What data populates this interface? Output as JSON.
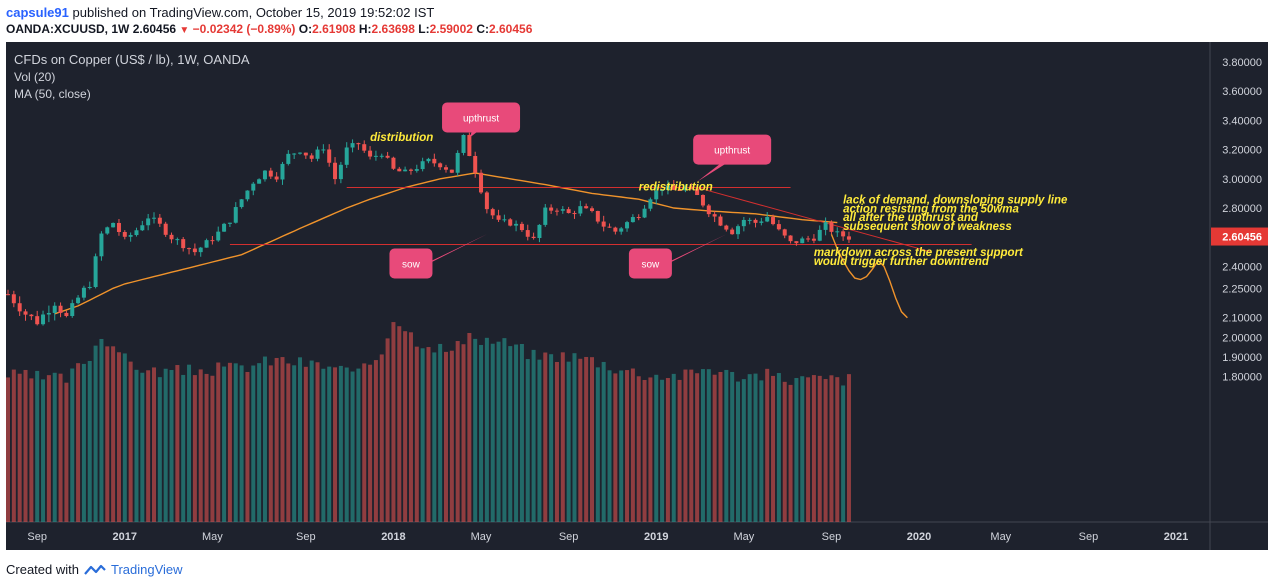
{
  "header": {
    "username": "capsule91",
    "published_text": "published on TradingView.com, October 15, 2019 19:52:02 IST",
    "symbol": "OANDA:XCUUSD, 1W",
    "last": "2.60456",
    "change": "−0.02342 (−0.89%)",
    "o_label": "O:",
    "o": "2.61908",
    "h_label": "H:",
    "h": "2.63698",
    "l_label": "L:",
    "l": "2.59002",
    "c_label": "C:",
    "c": "2.60456"
  },
  "legend": {
    "title": "CFDs on Copper (US$ / lb), 1W, OANDA",
    "vol": "Vol (20)",
    "ma": "MA (50, close)"
  },
  "footer": {
    "created_with": "Created with",
    "brand": "TradingView"
  },
  "colors": {
    "background": "#1e222d",
    "up": "#26a69a",
    "down": "#ef5350",
    "ma": "#f0932b",
    "annotation_bubble": "#e84a7a",
    "annotation_text": "#ffeb3b",
    "lines": "#d32f2f",
    "axis_text": "#d1d4dc",
    "price_label_bg": "#e53935"
  },
  "chart_data": {
    "type": "candlestick",
    "price_axis": {
      "min": 1.7,
      "max": 3.85,
      "ticks": [
        "3.80000",
        "3.60000",
        "3.40000",
        "3.20000",
        "3.00000",
        "2.80000",
        "2.60000",
        "2.40000",
        "2.25000",
        "2.10000",
        "2.00000",
        "1.90000",
        "1.80000"
      ],
      "last_label": "2.60456"
    },
    "time_axis": {
      "ticks": [
        "Sep",
        "2017",
        "May",
        "Sep",
        "2018",
        "May",
        "Sep",
        "2019",
        "May",
        "Sep",
        "2020",
        "May",
        "Sep",
        "2021"
      ]
    },
    "close_anchors": [
      [
        0,
        2.22
      ],
      [
        3,
        2.12
      ],
      [
        5,
        2.08
      ],
      [
        8,
        2.18
      ],
      [
        10,
        2.1
      ],
      [
        12,
        2.2
      ],
      [
        14,
        2.28
      ],
      [
        16,
        2.62
      ],
      [
        18,
        2.7
      ],
      [
        20,
        2.58
      ],
      [
        22,
        2.65
      ],
      [
        24,
        2.74
      ],
      [
        26,
        2.68
      ],
      [
        28,
        2.6
      ],
      [
        30,
        2.55
      ],
      [
        32,
        2.5
      ],
      [
        34,
        2.56
      ],
      [
        36,
        2.63
      ],
      [
        38,
        2.72
      ],
      [
        40,
        2.86
      ],
      [
        42,
        2.98
      ],
      [
        44,
        3.05
      ],
      [
        46,
        3.02
      ],
      [
        48,
        3.16
      ],
      [
        50,
        3.2
      ],
      [
        52,
        3.14
      ],
      [
        54,
        3.22
      ],
      [
        56,
        3.0
      ],
      [
        58,
        3.2
      ],
      [
        60,
        3.24
      ],
      [
        62,
        3.14
      ],
      [
        64,
        3.18
      ],
      [
        66,
        3.06
      ],
      [
        68,
        3.04
      ],
      [
        70,
        3.08
      ],
      [
        72,
        3.12
      ],
      [
        74,
        3.1
      ],
      [
        76,
        3.05
      ],
      [
        78,
        3.28
      ],
      [
        80,
        3.06
      ],
      [
        82,
        2.8
      ],
      [
        84,
        2.7
      ],
      [
        86,
        2.7
      ],
      [
        88,
        2.66
      ],
      [
        90,
        2.58
      ],
      [
        92,
        2.78
      ],
      [
        94,
        2.8
      ],
      [
        96,
        2.76
      ],
      [
        98,
        2.8
      ],
      [
        100,
        2.76
      ],
      [
        102,
        2.68
      ],
      [
        104,
        2.64
      ],
      [
        106,
        2.7
      ],
      [
        108,
        2.76
      ],
      [
        110,
        2.88
      ],
      [
        112,
        2.94
      ],
      [
        114,
        2.92
      ],
      [
        116,
        2.94
      ],
      [
        118,
        2.88
      ],
      [
        120,
        2.78
      ],
      [
        122,
        2.7
      ],
      [
        124,
        2.64
      ],
      [
        126,
        2.72
      ],
      [
        128,
        2.7
      ],
      [
        130,
        2.74
      ],
      [
        132,
        2.64
      ],
      [
        134,
        2.56
      ],
      [
        136,
        2.58
      ],
      [
        138,
        2.6
      ],
      [
        140,
        2.68
      ],
      [
        142,
        2.62
      ],
      [
        144,
        2.6
      ]
    ],
    "volume_anchors": [
      [
        0,
        1.8
      ],
      [
        10,
        1.78
      ],
      [
        14,
        1.9
      ],
      [
        16,
        2.0
      ],
      [
        18,
        1.96
      ],
      [
        20,
        1.88
      ],
      [
        24,
        1.82
      ],
      [
        30,
        1.82
      ],
      [
        40,
        1.84
      ],
      [
        46,
        1.88
      ],
      [
        56,
        1.84
      ],
      [
        60,
        1.8
      ],
      [
        64,
        1.92
      ],
      [
        66,
        2.1
      ],
      [
        70,
        1.98
      ],
      [
        76,
        1.92
      ],
      [
        78,
        1.98
      ],
      [
        82,
        1.98
      ],
      [
        86,
        1.96
      ],
      [
        90,
        1.9
      ],
      [
        96,
        1.9
      ],
      [
        100,
        1.88
      ],
      [
        104,
        1.84
      ],
      [
        110,
        1.8
      ],
      [
        116,
        1.8
      ],
      [
        120,
        1.84
      ],
      [
        124,
        1.8
      ],
      [
        130,
        1.8
      ],
      [
        134,
        1.78
      ],
      [
        140,
        1.78
      ],
      [
        144,
        1.78
      ]
    ],
    "ma_anchors": [
      [
        8,
        2.12
      ],
      [
        12,
        2.16
      ],
      [
        20,
        2.28
      ],
      [
        30,
        2.38
      ],
      [
        40,
        2.48
      ],
      [
        50,
        2.66
      ],
      [
        58,
        2.8
      ],
      [
        62,
        2.86
      ],
      [
        68,
        2.94
      ],
      [
        74,
        3.0
      ],
      [
        80,
        3.04
      ],
      [
        86,
        3.0
      ],
      [
        92,
        2.96
      ],
      [
        100,
        2.9
      ],
      [
        108,
        2.86
      ],
      [
        114,
        2.8
      ],
      [
        120,
        2.78
      ],
      [
        128,
        2.76
      ],
      [
        136,
        2.72
      ],
      [
        142,
        2.7
      ]
    ],
    "forecast": [
      [
        141,
        2.62
      ],
      [
        142,
        2.52
      ],
      [
        143,
        2.44
      ],
      [
        144,
        2.37
      ],
      [
        145,
        2.32
      ],
      [
        146,
        2.31
      ],
      [
        147,
        2.33
      ],
      [
        148,
        2.38
      ],
      [
        149,
        2.44
      ],
      [
        150,
        2.4
      ],
      [
        151,
        2.3
      ],
      [
        152,
        2.2
      ],
      [
        153,
        2.13
      ],
      [
        154,
        2.1
      ]
    ],
    "annotations": [
      {
        "kind": "bubble",
        "text": "upthrust",
        "x": 81,
        "y": 3.42,
        "tip_x": 79,
        "tip_y": 3.28
      },
      {
        "kind": "bubble",
        "text": "upthrust",
        "x": 124,
        "y": 3.2,
        "tip_x": 118,
        "tip_y": 2.98
      },
      {
        "kind": "bubble",
        "text": "sow",
        "x": 69,
        "y": 2.42,
        "tip_x": 82,
        "tip_y": 2.62
      },
      {
        "kind": "bubble",
        "text": "sow",
        "x": 110,
        "y": 2.42,
        "tip_x": 123,
        "tip_y": 2.62
      },
      {
        "kind": "label",
        "text": "distribution",
        "x": 62,
        "y": 3.26
      },
      {
        "kind": "label",
        "text": "redistribution",
        "x": 108,
        "y": 2.92
      },
      {
        "kind": "label",
        "text": "lack of demand, downsloping supply line",
        "x": 143,
        "y": 2.83
      },
      {
        "kind": "label",
        "text": "action resisting from the 50wma",
        "x": 143,
        "y": 2.77
      },
      {
        "kind": "label",
        "text": " all after the upthrust and",
        "x": 143,
        "y": 2.71
      },
      {
        "kind": "label",
        "text": "subsequent show of weakness",
        "x": 143,
        "y": 2.65
      },
      {
        "kind": "label",
        "text": "markdown across the present support",
        "x": 138,
        "y": 2.47
      },
      {
        "kind": "label",
        "text": "would trigger further downtrend",
        "x": 138,
        "y": 2.41
      }
    ],
    "lines": [
      {
        "name": "distribution-support",
        "x1": 58,
        "y1": 2.94,
        "x2": 134,
        "y2": 2.94
      },
      {
        "name": "main-support",
        "x1": 38,
        "y1": 2.55,
        "x2": 165,
        "y2": 2.55
      },
      {
        "name": "supply-line",
        "x1": 118,
        "y1": 2.94,
        "x2": 158,
        "y2": 2.5
      }
    ]
  }
}
